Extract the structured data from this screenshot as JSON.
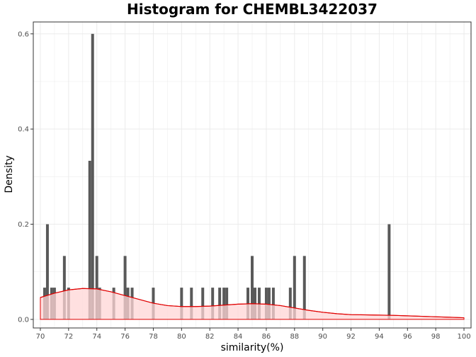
{
  "chart_data": {
    "type": "bar",
    "title": "Histogram for CHEMBL3422037",
    "xlabel": "similarity(%)",
    "ylabel": "Density",
    "xlim": [
      69.5,
      100.5
    ],
    "ylim": [
      -0.018,
      0.625
    ],
    "x_ticks": [
      70,
      72,
      74,
      76,
      78,
      80,
      82,
      84,
      86,
      88,
      90,
      92,
      94,
      96,
      98,
      100
    ],
    "y_ticks": [
      0.0,
      0.2,
      0.4,
      0.6
    ],
    "x_tick_labels": [
      "70",
      "72",
      "74",
      "76",
      "78",
      "80",
      "82",
      "84",
      "86",
      "88",
      "90",
      "92",
      "94",
      "96",
      "98",
      "100"
    ],
    "y_tick_labels": [
      "0.0",
      "0.2",
      "0.4",
      "0.6"
    ],
    "grid": true,
    "bar_width": 0.2,
    "colors": {
      "bar": "#595959",
      "density_line": "#e00000",
      "density_fill": "#ffd6d6",
      "grid": "#ebebeb",
      "panel_border": "#333333"
    },
    "bars": [
      {
        "x": 70.3,
        "y": 0.0667
      },
      {
        "x": 70.5,
        "y": 0.2
      },
      {
        "x": 70.8,
        "y": 0.0667
      },
      {
        "x": 71.0,
        "y": 0.0667
      },
      {
        "x": 71.7,
        "y": 0.1333
      },
      {
        "x": 72.0,
        "y": 0.0667
      },
      {
        "x": 73.5,
        "y": 0.3333
      },
      {
        "x": 73.7,
        "y": 0.6
      },
      {
        "x": 74.0,
        "y": 0.1333
      },
      {
        "x": 74.2,
        "y": 0.0667
      },
      {
        "x": 75.2,
        "y": 0.0667
      },
      {
        "x": 76.0,
        "y": 0.1333
      },
      {
        "x": 76.2,
        "y": 0.0667
      },
      {
        "x": 76.5,
        "y": 0.0667
      },
      {
        "x": 78.0,
        "y": 0.0667
      },
      {
        "x": 80.0,
        "y": 0.0667
      },
      {
        "x": 80.7,
        "y": 0.0667
      },
      {
        "x": 81.5,
        "y": 0.0667
      },
      {
        "x": 82.2,
        "y": 0.0667
      },
      {
        "x": 82.7,
        "y": 0.0667
      },
      {
        "x": 83.0,
        "y": 0.0667
      },
      {
        "x": 83.2,
        "y": 0.0667
      },
      {
        "x": 84.7,
        "y": 0.0667
      },
      {
        "x": 85.0,
        "y": 0.1333
      },
      {
        "x": 85.2,
        "y": 0.0667
      },
      {
        "x": 85.5,
        "y": 0.0667
      },
      {
        "x": 86.0,
        "y": 0.0667
      },
      {
        "x": 86.2,
        "y": 0.0667
      },
      {
        "x": 86.5,
        "y": 0.0667
      },
      {
        "x": 87.7,
        "y": 0.0667
      },
      {
        "x": 88.0,
        "y": 0.1333
      },
      {
        "x": 88.7,
        "y": 0.1333
      },
      {
        "x": 94.7,
        "y": 0.2
      }
    ],
    "density": {
      "x": [
        70,
        71,
        72,
        73,
        74,
        75,
        76,
        77,
        78,
        79,
        80,
        81,
        82,
        83,
        84,
        85,
        86,
        87,
        88,
        89,
        90,
        91,
        92,
        93,
        94,
        95,
        96,
        97,
        98,
        99,
        100
      ],
      "y": [
        0.046,
        0.055,
        0.062,
        0.065,
        0.064,
        0.058,
        0.05,
        0.042,
        0.034,
        0.029,
        0.027,
        0.027,
        0.028,
        0.03,
        0.032,
        0.033,
        0.032,
        0.029,
        0.024,
        0.019,
        0.015,
        0.012,
        0.01,
        0.0095,
        0.009,
        0.0085,
        0.0075,
        0.0065,
        0.0055,
        0.0045,
        0.0035
      ]
    }
  }
}
